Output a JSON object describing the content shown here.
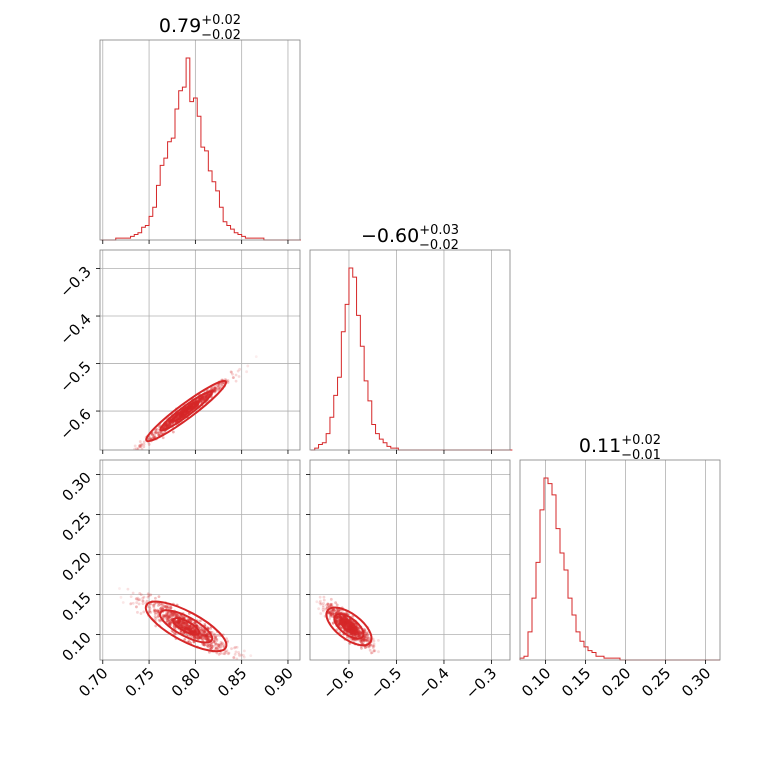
{
  "chart_data": {
    "type": "corner",
    "color": "#d62728",
    "params": [
      {
        "range": [
          0.697,
          0.913
        ],
        "ticks": [
          0.7,
          0.75,
          0.8,
          0.85,
          0.9
        ],
        "tick_labels": [
          "0.70",
          "0.75",
          "0.80",
          "0.85",
          "0.90"
        ],
        "title_main": "0.79",
        "title_plus": "+0.02",
        "title_minus": "−0.02",
        "hist": {
          "bins": [
            0.698,
            0.702,
            0.706,
            0.71,
            0.714,
            0.718,
            0.722,
            0.726,
            0.73,
            0.734,
            0.738,
            0.742,
            0.746,
            0.75,
            0.754,
            0.758,
            0.762,
            0.766,
            0.77,
            0.774,
            0.778,
            0.782,
            0.786,
            0.79,
            0.794,
            0.798,
            0.802,
            0.806,
            0.81,
            0.814,
            0.818,
            0.822,
            0.826,
            0.83,
            0.834,
            0.838,
            0.842,
            0.846,
            0.85,
            0.854,
            0.858,
            0.862,
            0.866,
            0.87,
            0.874,
            0.878,
            0.882,
            0.886,
            0.89,
            0.894,
            0.898,
            0.902,
            0.906,
            0.91
          ],
          "counts": [
            0,
            0,
            0,
            0,
            1,
            1,
            1,
            1,
            2,
            3,
            4,
            7,
            8,
            13,
            18,
            30,
            41,
            45,
            54,
            56,
            72,
            82,
            84,
            100,
            76,
            78,
            68,
            51,
            49,
            38,
            32,
            27,
            18,
            10,
            8,
            6,
            4,
            3,
            2,
            1,
            1,
            1,
            1,
            1,
            0,
            0,
            0,
            0,
            0,
            0,
            0,
            0,
            0,
            0
          ]
        }
      },
      {
        "range": [
          -0.682,
          -0.261
        ],
        "ticks": [
          -0.6,
          -0.5,
          -0.4,
          -0.3
        ],
        "tick_labels": [
          "−0.6",
          "−0.5",
          "−0.4",
          "−0.3"
        ],
        "title_main": "−0.60",
        "title_plus": "+0.03",
        "title_minus": "−0.02",
        "hist": {
          "bins": [
            -0.68,
            -0.672,
            -0.664,
            -0.656,
            -0.648,
            -0.64,
            -0.632,
            -0.624,
            -0.616,
            -0.608,
            -0.6,
            -0.592,
            -0.584,
            -0.576,
            -0.568,
            -0.56,
            -0.552,
            -0.544,
            -0.536,
            -0.528,
            -0.52,
            -0.512,
            -0.504,
            -0.496,
            -0.488,
            -0.48,
            -0.472,
            -0.464,
            -0.456,
            -0.448,
            -0.44,
            -0.432,
            -0.424,
            -0.416,
            -0.408,
            -0.4,
            -0.392,
            -0.384,
            -0.376,
            -0.368,
            -0.36,
            -0.352,
            -0.344,
            -0.336,
            -0.328,
            -0.32,
            -0.312,
            -0.304,
            -0.296,
            -0.288,
            -0.28,
            -0.272,
            -0.264
          ],
          "counts": [
            0,
            1,
            3,
            4,
            9,
            18,
            30,
            40,
            65,
            80,
            100,
            95,
            74,
            57,
            38,
            27,
            14,
            9,
            6,
            4,
            2,
            1,
            1,
            0,
            0,
            0,
            0,
            0,
            0,
            0,
            0,
            0,
            0,
            0,
            0,
            0,
            0,
            0,
            0,
            0,
            0,
            0,
            0,
            0,
            0,
            0,
            0,
            0,
            0,
            0,
            0,
            0,
            0
          ]
        }
      },
      {
        "range": [
          0.068,
          0.318
        ],
        "ticks": [
          0.1,
          0.15,
          0.2,
          0.25,
          0.3
        ],
        "tick_labels": [
          "0.10",
          "0.15",
          "0.20",
          "0.25",
          "0.30"
        ],
        "title_main": "0.11",
        "title_plus": "+0.02",
        "title_minus": "−0.01",
        "hist": {
          "bins": [
            0.068,
            0.073,
            0.078,
            0.083,
            0.088,
            0.093,
            0.098,
            0.103,
            0.108,
            0.113,
            0.118,
            0.123,
            0.128,
            0.133,
            0.138,
            0.143,
            0.148,
            0.153,
            0.158,
            0.163,
            0.168,
            0.173,
            0.178,
            0.183,
            0.188,
            0.193,
            0.198,
            0.203,
            0.208,
            0.213,
            0.218,
            0.223,
            0.228,
            0.233,
            0.238,
            0.243,
            0.248,
            0.253,
            0.258,
            0.263,
            0.268,
            0.273,
            0.278,
            0.283,
            0.288,
            0.293,
            0.298,
            0.303,
            0.308,
            0.313
          ],
          "counts": [
            1,
            2,
            15,
            33,
            52,
            80,
            97,
            94,
            88,
            70,
            57,
            48,
            33,
            24,
            15,
            10,
            7,
            5,
            4,
            2,
            2,
            1,
            1,
            1,
            1,
            0,
            0,
            0,
            0,
            0,
            0,
            0,
            0,
            0,
            0,
            0,
            0,
            0,
            0,
            0,
            0,
            0,
            0,
            0,
            0,
            0,
            0,
            0,
            0,
            0
          ]
        }
      }
    ],
    "pairs": [
      {
        "x": 0,
        "y": 1,
        "slope": 1.45,
        "x_center": 0.79,
        "y_center": -0.6,
        "x_sd": 0.024,
        "y_scatter": 0.006,
        "x_min": 0.7,
        "x_max": 0.87
      },
      {
        "x": 0,
        "y": 2,
        "slope": -0.62,
        "x_center": 0.79,
        "y_center": 0.11,
        "x_sd": 0.024,
        "y_scatter": 0.007,
        "x_min": 0.7,
        "x_max": 0.86
      },
      {
        "x": 1,
        "y": 2,
        "slope": -0.45,
        "x_center": -0.6,
        "y_center": 0.11,
        "x_sd": 0.025,
        "y_scatter": 0.006,
        "x_min": -0.67,
        "x_max": -0.51
      }
    ]
  }
}
